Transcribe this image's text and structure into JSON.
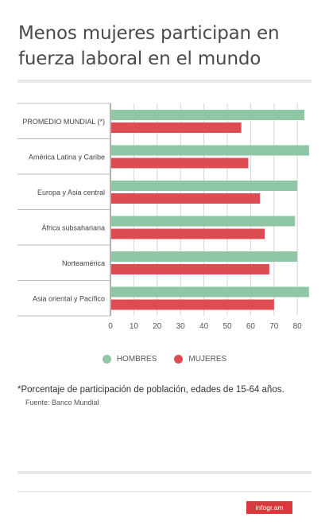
{
  "title": "Menos mujeres participan en fuerza laboral en el mundo",
  "legend": {
    "hombres": "HOMBRES",
    "mujeres": "MUJERES"
  },
  "note": "*Porcentaje de participación de población, edades de 15-64 años.",
  "source": "Fuente: Banco Mundial",
  "branding": "infogr.am",
  "colors": {
    "hombres": "#8fc7a4",
    "mujeres": "#dd4c50",
    "badge": "#d9393d"
  },
  "chart_data": {
    "type": "bar",
    "orientation": "horizontal",
    "categories": [
      "PROMEDIO MUNDIAL (*)",
      "América Latina y Caribe",
      "Europa y Asia central",
      "África subsahariana",
      "Norteamérica",
      "Asia oriental y Pacífico"
    ],
    "series": [
      {
        "name": "HOMBRES",
        "values": [
          83,
          85,
          80,
          79,
          80,
          85
        ]
      },
      {
        "name": "MUJERES",
        "values": [
          56,
          59,
          64,
          66,
          68,
          70
        ]
      }
    ],
    "xticks": [
      0,
      10,
      20,
      30,
      40,
      50,
      60,
      70,
      80
    ],
    "xlim": [
      0,
      86
    ],
    "grid": true,
    "legend_position": "bottom"
  }
}
